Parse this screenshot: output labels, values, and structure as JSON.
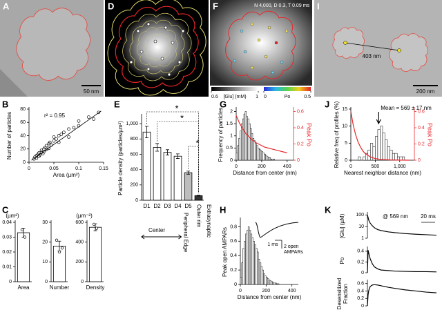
{
  "panels": [
    {
      "letter": "A",
      "scale_bar": "50 nm"
    },
    {
      "letter": "D"
    },
    {
      "letter": "F",
      "header": "N 4,000, D 0.3, T 0.09 ms",
      "glu_bar": {
        "label": "[Glu] (mM)",
        "ticks": [
          0.6,
          1
        ]
      },
      "po_bar": {
        "label": "Po",
        "ticks": [
          0,
          0.5
        ]
      }
    },
    {
      "letter": "I",
      "distance": "403 nm",
      "scale_bar": "200 nm"
    }
  ],
  "chart_data": [
    {
      "type": "scatter",
      "panel": "B",
      "x": [
        0.01,
        0.012,
        0.015,
        0.015,
        0.018,
        0.02,
        0.02,
        0.022,
        0.025,
        0.025,
        0.028,
        0.03,
        0.03,
        0.032,
        0.035,
        0.035,
        0.04,
        0.04,
        0.042,
        0.045,
        0.05,
        0.05,
        0.055,
        0.06,
        0.06,
        0.065,
        0.07,
        0.08,
        0.08,
        0.09,
        0.1,
        0.1,
        0.12,
        0.13,
        0.14
      ],
      "values": [
        5,
        8,
        10,
        6,
        12,
        14,
        9,
        11,
        15,
        18,
        13,
        20,
        16,
        22,
        19,
        25,
        28,
        21,
        30,
        26,
        32,
        38,
        35,
        40,
        30,
        42,
        45,
        50,
        38,
        52,
        62,
        55,
        68,
        65,
        75
      ],
      "fit": {
        "x": [
          0.005,
          0.145
        ],
        "y": [
          3,
          77
        ]
      },
      "annotation": "r² = 0.95",
      "xlabel": "Area (µm²)",
      "ylabel": "Number of particles",
      "xlim": [
        0,
        0.15
      ],
      "xticks": [
        0,
        0.05,
        0.1,
        0.15
      ],
      "ylim": [
        0,
        80
      ],
      "yticks": [
        0,
        20,
        40,
        60,
        80
      ]
    },
    {
      "type": "bar",
      "panel": "E",
      "categories": [
        "D1",
        "D2",
        "D3",
        "D4",
        "D5",
        "Outer rim"
      ],
      "values": [
        890,
        690,
        625,
        575,
        360,
        60
      ],
      "errors": [
        75,
        50,
        35,
        30,
        20,
        5
      ],
      "colors": [
        "#ffffff",
        "#ffffff",
        "#ffffff",
        "#ffffff",
        "#bdbdbd",
        "#333333"
      ],
      "ylabel": "Particle density (particles/µm²)",
      "ylim": [
        0,
        1100
      ],
      "yticks": [
        0,
        200,
        400,
        600,
        800,
        {
          "value": 1000,
          "label": "1,000"
        }
      ],
      "annotations": [
        "*",
        "*",
        "*",
        "Center",
        "Peripheral Edge",
        "Extrasynaptic"
      ]
    },
    {
      "type": "histogram",
      "panel": "G",
      "bins": [
        0,
        10,
        20,
        30,
        40,
        50,
        60,
        70,
        80,
        90,
        100,
        110,
        120,
        130,
        140,
        150,
        160,
        170,
        180,
        190,
        200,
        210,
        220,
        230,
        240,
        250,
        260,
        270,
        280,
        290,
        300
      ],
      "values": [
        0.3,
        0.6,
        0.9,
        1.2,
        1.5,
        1.7,
        1.9,
        2.0,
        1.8,
        1.7,
        1.5,
        1.3,
        1.1,
        0.9,
        0.8,
        0.7,
        0.6,
        0.5,
        0.45,
        0.4,
        0.35,
        0.3,
        0.25,
        0.2,
        0.15,
        0.1,
        0.1,
        0.05,
        0.05,
        0.05
      ],
      "color": "#ffffff",
      "series": [
        {
          "color": "#e8262a",
          "axis": "y2",
          "x": [
            0,
            25,
            50,
            75,
            100,
            125,
            150,
            175,
            200,
            225,
            250,
            275,
            300,
            325,
            350,
            375,
            400
          ],
          "values": [
            0.55,
            0.46,
            0.39,
            0.33,
            0.29,
            0.25,
            0.22,
            0.2,
            0.18,
            0.16,
            0.15,
            0.14,
            0.13,
            0.12,
            0.11,
            0.1,
            0.09
          ]
        }
      ],
      "xlabel": "Distance from center (nm)",
      "ylabel": "Frequency of particles",
      "y2label": "Peak Po",
      "xlim": [
        0,
        450
      ],
      "xticks": [
        0,
        200,
        400
      ],
      "ylim": [
        0,
        2.1
      ],
      "yticks": [
        0,
        0.5,
        1,
        1.5,
        2
      ],
      "y2lim": [
        0,
        0.63
      ],
      "y2ticks": [
        0,
        0.2,
        0.4,
        0.6
      ]
    },
    {
      "type": "histogram",
      "panel": "J",
      "bins": [
        150,
        200,
        250,
        300,
        350,
        400,
        450,
        500,
        550,
        600,
        650,
        700,
        750,
        800,
        850,
        900,
        950,
        1000,
        1050,
        1100
      ],
      "values": [
        1,
        0,
        1,
        2,
        3,
        5,
        4,
        7,
        9,
        10,
        8,
        6,
        4,
        3,
        2,
        2,
        1,
        1,
        1
      ],
      "color": "#ffffff",
      "series": [
        {
          "color": "#e8262a",
          "axis": "y2",
          "x": [
            0,
            50,
            100,
            150,
            200,
            250,
            300,
            400,
            500,
            600,
            800,
            1000,
            1200
          ],
          "values": [
            0.6,
            0.43,
            0.31,
            0.22,
            0.16,
            0.11,
            0.08,
            0.04,
            0.02,
            0.01,
            0.003,
            0.001,
            0
          ]
        }
      ],
      "annotation": "Mean = 569 ± 17 nm",
      "marker_x": 569,
      "xlabel": "Nearest neighbor distance (nm)",
      "ylabel": "Relative freq of profiles (%)",
      "y2label": "Peak Po",
      "xlim": [
        0,
        1300
      ],
      "xticks": [
        0,
        500,
        {
          "value": 1000,
          "label": "1,000"
        }
      ],
      "ylim": [
        0,
        15
      ],
      "yticks": [
        0,
        5,
        10,
        15
      ],
      "y2lim": [
        0,
        0.63
      ],
      "y2ticks": [
        0,
        0.2,
        0.4,
        0.6
      ]
    },
    {
      "type": "bar",
      "panel": "C",
      "categories": [
        "Area"
      ],
      "values": [
        0.033
      ],
      "errors": [
        0.003
      ],
      "points": [
        0.035,
        0.03
      ],
      "colors": [
        "#ffffff"
      ],
      "unit": "(µm²)",
      "ylim": [
        0,
        0.04
      ],
      "yticks": [
        0,
        0.01,
        0.02,
        0.03,
        0.04
      ]
    },
    {
      "type": "bar",
      "categories": [
        "Number"
      ],
      "values": [
        18
      ],
      "errors": [
        2.5
      ],
      "points": [
        21,
        15,
        17
      ],
      "colors": [
        "#ffffff"
      ],
      "ylim": [
        0,
        30
      ],
      "yticks": [
        0,
        10,
        20,
        30
      ]
    },
    {
      "type": "bar",
      "categories": [
        "Density"
      ],
      "values": [
        550
      ],
      "errors": [
        35
      ],
      "points": [
        580,
        540
      ],
      "colors": [
        "#ffffff"
      ],
      "unit": "(µm⁻²)",
      "ylim": [
        0,
        600
      ],
      "yticks": [
        0,
        200,
        400,
        600
      ]
    },
    {
      "type": "histogram",
      "panel": "H",
      "bins": [
        0,
        10,
        20,
        30,
        40,
        50,
        60,
        70,
        80,
        90,
        100,
        110,
        120,
        130,
        140,
        150,
        160,
        170,
        180,
        190,
        200,
        210,
        220,
        230,
        240,
        250,
        260,
        270,
        280,
        290,
        300
      ],
      "values": [
        0.1,
        0.3,
        0.5,
        0.6,
        0.7,
        0.75,
        0.8,
        0.75,
        0.7,
        0.65,
        0.6,
        0.55,
        0.5,
        0.45,
        0.35,
        0.3,
        0.25,
        0.2,
        0.15,
        0.12,
        0.1,
        0.08,
        0.06,
        0.05,
        0.04,
        0.03,
        0.02,
        0.02,
        0.01,
        0.01
      ],
      "color": "#ffffff",
      "inset_scale": [
        "1 ms",
        "2 open",
        "AMPARs"
      ],
      "xlabel": "Distance from center (nm)",
      "ylabel": "Peak open AMPARs",
      "xlim": [
        0,
        450
      ],
      "xticks": [
        0,
        200,
        400
      ],
      "ylim": [
        0,
        0.9
      ],
      "yticks": [
        0,
        0.2,
        0.4,
        0.6,
        0.8
      ]
    },
    {
      "type": "line",
      "panel": "K",
      "log_y": true,
      "x": [
        0,
        1,
        2,
        4,
        7,
        10,
        15,
        20,
        30,
        40,
        55,
        70,
        85,
        100
      ],
      "series": [
        {
          "color": "#000000",
          "values": [
            100,
            60,
            35,
            20,
            12,
            8,
            5.5,
            4.5,
            3.5,
            3,
            2.5,
            2.2,
            2,
            1.8
          ]
        }
      ],
      "annotation": "@ 569 nm",
      "scale_bar": "20 ms",
      "ylabel": [
        "[Glu] (µM)"
      ],
      "xlim": [
        0,
        100
      ],
      "ylim": [
        1,
        120
      ],
      "yticks": [
        1,
        10,
        100
      ]
    },
    {
      "type": "line",
      "x": [
        0,
        1,
        2,
        4,
        7,
        10,
        15,
        20,
        30,
        40,
        55,
        70,
        85,
        100
      ],
      "series": [
        {
          "color": "#000000",
          "values": [
            0,
            0.42,
            0.36,
            0.26,
            0.17,
            0.11,
            0.07,
            0.05,
            0.04,
            0.03,
            0.025,
            0.02,
            0.02,
            0.015
          ]
        }
      ],
      "ylabel": [
        "Po"
      ],
      "xlim": [
        0,
        100
      ],
      "ylim": [
        0,
        0.45
      ],
      "yticks": [
        0,
        0.2,
        0.4
      ]
    },
    {
      "type": "line",
      "x": [
        0,
        1,
        2,
        4,
        7,
        10,
        15,
        20,
        30,
        40,
        55,
        70,
        85,
        100
      ],
      "series": [
        {
          "color": "#000000",
          "values": [
            0,
            0.3,
            0.42,
            0.52,
            0.56,
            0.57,
            0.56,
            0.54,
            0.5,
            0.47,
            0.43,
            0.4,
            0.37,
            0.35
          ]
        }
      ],
      "ylabel": [
        "Desensitized",
        "Fraction"
      ],
      "xlim": [
        0,
        100
      ],
      "ylim": [
        0,
        0.65
      ],
      "yticks": [
        0,
        0.2,
        0.4,
        0.6
      ]
    }
  ]
}
